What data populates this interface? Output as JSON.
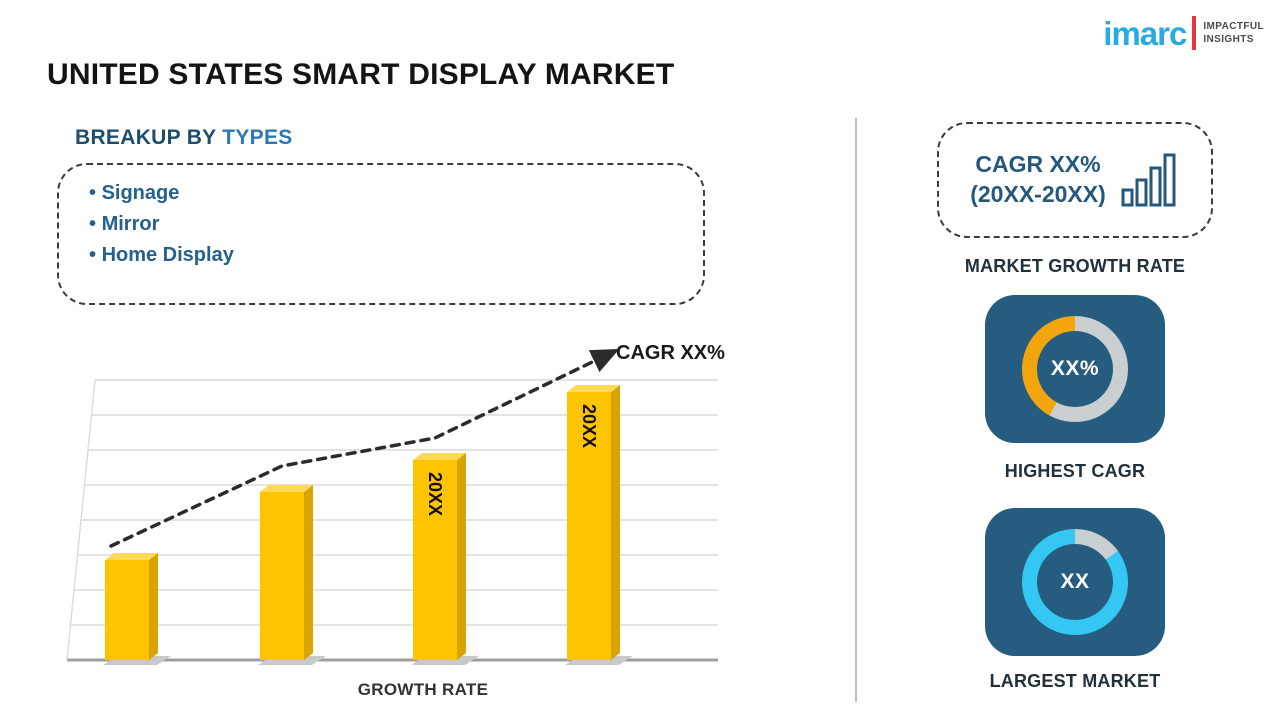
{
  "logo": {
    "brand": "imarc",
    "tagline_line1": "IMPACTFUL",
    "tagline_line2": "INSIGHTS"
  },
  "title": "UNITED STATES SMART DISPLAY MARKET",
  "breakup": {
    "heading_prefix": "BREAKUP BY",
    "heading_highlight": "TYPES",
    "items": [
      "Signage",
      "Mirror",
      "Home Display"
    ]
  },
  "chart_data": {
    "type": "bar",
    "categories": [
      "",
      "",
      "20XX",
      "20XX"
    ],
    "values": [
      25,
      42,
      50,
      67
    ],
    "ylim": [
      0,
      70
    ],
    "xlabel": "GROWTH RATE",
    "trend_label": "CAGR XX%",
    "grid": "horizontal",
    "bar_color": "#FFC400",
    "trend": "dashed ascending arrow over bars"
  },
  "sidebar": {
    "growth_card": {
      "line1": "CAGR XX%",
      "line2": "(20XX-20XX)"
    },
    "growth_card_label": "MARKET GROWTH RATE",
    "highest_cagr": {
      "value": "XX%",
      "label": "HIGHEST CAGR",
      "ring_color": "#F2A50C",
      "ring_pct": 42
    },
    "largest_market": {
      "value": "XX",
      "label": "LARGEST MARKET",
      "ring_color": "#35C7F3",
      "ring_pct": 85
    }
  },
  "colors": {
    "navy": "#265C7F",
    "blue": "#2D77B4",
    "gray_ring": "#C9CED1",
    "logo_cyan": "#29ABE2",
    "logo_red": "#E8353D"
  }
}
